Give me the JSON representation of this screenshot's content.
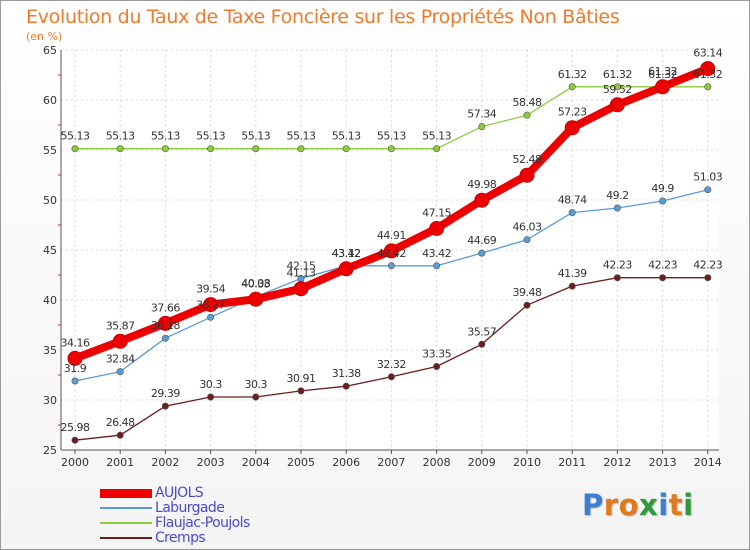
{
  "chart_data": {
    "type": "line",
    "title": "Evolution du Taux de Taxe Foncière sur les Propriétés Non Bâties",
    "ylabel": "(en %)",
    "xlabel": "",
    "categories": [
      "2000",
      "2001",
      "2002",
      "2003",
      "2004",
      "2005",
      "2006",
      "2007",
      "2008",
      "2009",
      "2010",
      "2011",
      "2012",
      "2013",
      "2014"
    ],
    "ylim": [
      25,
      65
    ],
    "yticks": [
      25,
      30,
      35,
      40,
      45,
      50,
      55,
      60,
      65
    ],
    "grid": true,
    "series": [
      {
        "name": "AUJOLS",
        "color": "#ee0000",
        "values": [
          34.16,
          35.87,
          37.66,
          39.54,
          40.08,
          41.13,
          43.12,
          44.91,
          47.15,
          49.98,
          52.48,
          57.23,
          59.52,
          61.32,
          63.14
        ]
      },
      {
        "name": "Laburgade",
        "color": "#5a9cd8",
        "values": [
          31.9,
          32.84,
          36.18,
          38.27,
          40.33,
          42.15,
          43.42,
          43.42,
          43.42,
          44.69,
          46.03,
          48.74,
          49.2,
          49.9,
          51.03
        ]
      },
      {
        "name": "Flaujac-Poujols",
        "color": "#8ccc3c",
        "values": [
          55.13,
          55.13,
          55.13,
          55.13,
          55.13,
          55.13,
          55.13,
          55.13,
          55.13,
          57.34,
          58.48,
          61.32,
          61.32,
          61.32,
          61.32
        ]
      },
      {
        "name": "Cremps",
        "color": "#6b1e1e",
        "values": [
          25.98,
          26.48,
          29.39,
          30.3,
          30.3,
          30.91,
          31.38,
          32.32,
          33.35,
          35.57,
          39.48,
          41.39,
          42.23,
          42.23,
          42.23
        ]
      }
    ]
  },
  "logo": {
    "letters": [
      "P",
      "r",
      "o",
      "x",
      "i",
      "t",
      "i"
    ],
    "colors": [
      "#3a7fd0",
      "#e07a1c",
      "#e07a1c",
      "#2f9a3a",
      "#3a7fd0",
      "#e07a1c",
      "#2f9a3a"
    ]
  }
}
